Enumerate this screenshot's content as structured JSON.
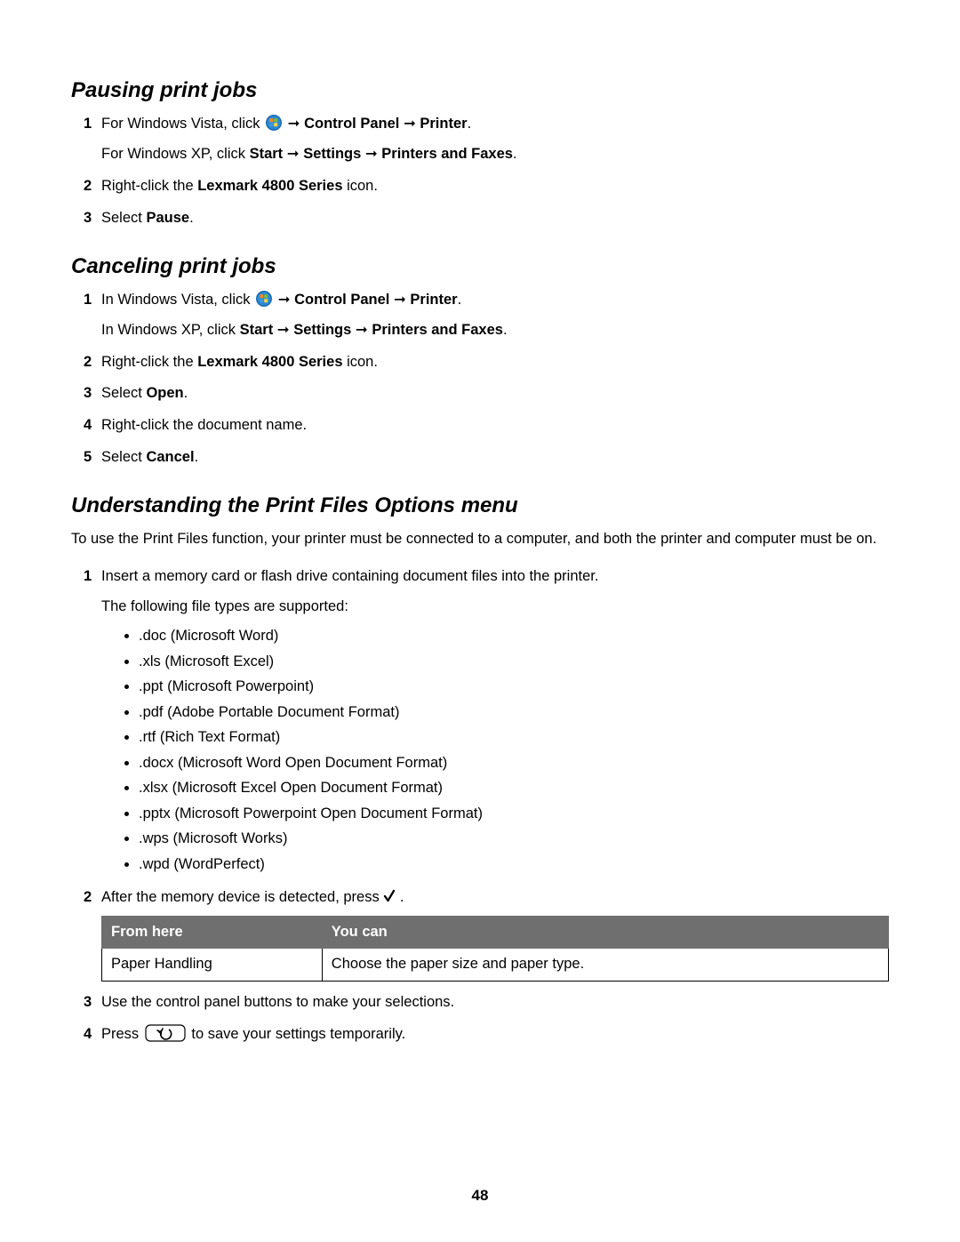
{
  "page_number": "48",
  "sections": {
    "pausing": {
      "heading": "Pausing print jobs",
      "step1_vista_pre": "For Windows Vista, click ",
      "step1_cp": "Control Panel",
      "step1_printer": "Printer",
      "step1_xp_pre": "For Windows XP, click ",
      "step1_xp_start": "Start",
      "step1_xp_settings": "Settings",
      "step1_xp_pf": "Printers and Faxes",
      "step2_pre": "Right-click the ",
      "step2_bold": "Lexmark 4800 Series",
      "step2_post": " icon.",
      "step3_pre": "Select ",
      "step3_bold": "Pause"
    },
    "canceling": {
      "heading": "Canceling print jobs",
      "step1_vista_pre": "In Windows Vista, click ",
      "step1_cp": "Control Panel",
      "step1_printer": "Printer",
      "step1_xp_pre": "In Windows XP, click ",
      "step1_xp_start": "Start",
      "step1_xp_settings": "Settings",
      "step1_xp_pf": "Printers and Faxes",
      "step2_pre": "Right-click the ",
      "step2_bold": "Lexmark 4800 Series",
      "step2_post": " icon.",
      "step3_pre": "Select ",
      "step3_bold": "Open",
      "step4": "Right-click the document name.",
      "step5_pre": "Select ",
      "step5_bold": "Cancel"
    },
    "options": {
      "heading": "Understanding the Print Files Options menu",
      "intro": "To use the Print Files function, your printer must be connected to a computer, and both the printer and computer must be on.",
      "step1": "Insert a memory card or flash drive containing document files into the printer.",
      "step1_sub": "The following file types are supported:",
      "filetypes": [
        ".doc (Microsoft Word)",
        ".xls (Microsoft Excel)",
        ".ppt (Microsoft Powerpoint)",
        ".pdf (Adobe Portable Document Format)",
        ".rtf (Rich Text Format)",
        ".docx (Microsoft Word Open Document Format)",
        ".xlsx (Microsoft Excel Open Document Format)",
        ".pptx (Microsoft Powerpoint Open Document Format)",
        ".wps (Microsoft Works)",
        ".wpd (WordPerfect)"
      ],
      "step2_pre": "After the memory device is detected, press ",
      "table": {
        "header1": "From here",
        "header2": "You can",
        "row1_col1": "Paper Handling",
        "row1_col2": "Choose the paper size and paper type."
      },
      "step3": "Use the control panel buttons to make your selections.",
      "step4_pre": "Press ",
      "step4_post": " to save your settings temporarily."
    }
  },
  "arrow": " ➞ ",
  "period": "."
}
